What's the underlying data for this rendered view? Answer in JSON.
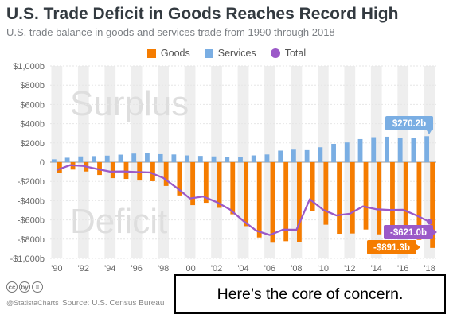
{
  "header": {
    "title": "U.S. Trade Deficit in Goods Reaches Record High",
    "subtitle": "U.S. trade balance in goods and services trade from 1990 through 2018"
  },
  "legend": {
    "goods": "Goods",
    "services": "Services",
    "total": "Total"
  },
  "colors": {
    "goods": "#f57c00",
    "services": "#7aaee3",
    "total": "#9b59c8",
    "band": "#eeeeee"
  },
  "chart_data": {
    "type": "bar",
    "x": [
      1990,
      1991,
      1992,
      1993,
      1994,
      1995,
      1996,
      1997,
      1998,
      1999,
      2000,
      2001,
      2002,
      2003,
      2004,
      2005,
      2006,
      2007,
      2008,
      2009,
      2010,
      2011,
      2012,
      2013,
      2014,
      2015,
      2016,
      2017,
      2018
    ],
    "series": [
      {
        "name": "Goods",
        "type": "bar",
        "values": [
          -111,
          -77,
          -97,
          -133,
          -166,
          -174,
          -191,
          -198,
          -247,
          -346,
          -447,
          -422,
          -475,
          -542,
          -665,
          -783,
          -837,
          -821,
          -833,
          -510,
          -650,
          -744,
          -741,
          -700,
          -750,
          -762,
          -750,
          -808,
          -891.3
        ]
      },
      {
        "name": "Services",
        "type": "bar",
        "values": [
          30,
          46,
          60,
          63,
          68,
          78,
          89,
          91,
          83,
          80,
          70,
          65,
          60,
          50,
          55,
          70,
          80,
          120,
          130,
          125,
          155,
          190,
          205,
          240,
          260,
          265,
          255,
          255,
          270.2
        ]
      },
      {
        "name": "Total",
        "type": "line",
        "values": [
          -81,
          -31,
          -39,
          -70,
          -98,
          -96,
          -102,
          -107,
          -164,
          -266,
          -377,
          -357,
          -415,
          -492,
          -610,
          -713,
          -757,
          -701,
          -703,
          -385,
          -495,
          -554,
          -536,
          -460,
          -490,
          -497,
          -495,
          -553,
          -621.0
        ]
      }
    ],
    "ylim": [
      -1000,
      1000
    ],
    "yticks": [
      "$1,000b",
      "$800b",
      "$600b",
      "$400b",
      "$200b",
      "0",
      "-$200b",
      "-$400b",
      "-$600b",
      "-$800b",
      "-$1,000b"
    ],
    "ytick_values": [
      1000,
      800,
      600,
      400,
      200,
      0,
      -200,
      -400,
      -600,
      -800,
      -1000
    ],
    "xtick_labels": [
      "'90",
      "'92",
      "'94",
      "'96",
      "'98",
      "'00",
      "'02",
      "'04",
      "'06",
      "'08",
      "'10",
      "'12",
      "'14",
      "'16",
      "'18"
    ],
    "xtick_years": [
      1990,
      1992,
      1994,
      1996,
      1998,
      2000,
      2002,
      2004,
      2006,
      2008,
      2010,
      2012,
      2014,
      2016,
      2018
    ],
    "watermarks": {
      "surplus": "Surplus",
      "deficit": "Deficit"
    },
    "annotations": [
      {
        "series": "Services",
        "year": 2018,
        "text": "$270.2b"
      },
      {
        "series": "Total",
        "year": 2018,
        "text": "-$621.0b"
      },
      {
        "series": "Goods",
        "year": 2018,
        "text": "-$891.3b"
      }
    ]
  },
  "footer": {
    "cc_icons": [
      "cc",
      "by",
      "="
    ],
    "handle": "@StatistaCharts",
    "source": "Source: U.S. Census Bureau"
  },
  "callout": {
    "text": "Here’s the core of concern."
  }
}
